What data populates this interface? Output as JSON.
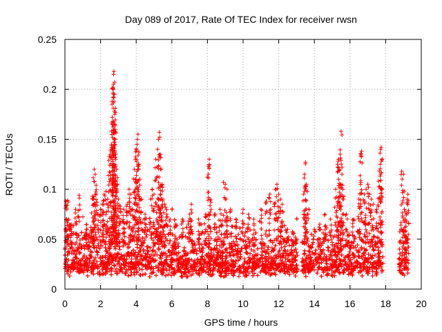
{
  "chart_data": {
    "type": "scatter",
    "title": "Day 089 of 2017, Rate Of TEC Index for receiver rwsn",
    "xlabel": "GPS time / hours",
    "ylabel": "ROTI / TECUs",
    "xlim": [
      0,
      20
    ],
    "ylim": [
      0,
      0.25
    ],
    "xticks": [
      "0",
      "2",
      "4",
      "6",
      "8",
      "10",
      "12",
      "14",
      "16",
      "18",
      "20"
    ],
    "yticks": [
      "0",
      "0.05",
      "0.1",
      "0.15",
      "0.2",
      "0.25"
    ],
    "grid": true,
    "marker": "plus",
    "color": "#ff0000",
    "gaps": [
      [
        13.05,
        13.3
      ],
      [
        17.85,
        18.75
      ],
      [
        19.3,
        20
      ]
    ],
    "density_profile": [
      [
        0.0,
        0.033
      ],
      [
        0.5,
        0.03
      ],
      [
        1.0,
        0.03
      ],
      [
        1.5,
        0.03
      ],
      [
        2.0,
        0.032
      ],
      [
        2.5,
        0.034
      ],
      [
        3.0,
        0.033
      ],
      [
        3.5,
        0.032
      ],
      [
        4.0,
        0.033
      ],
      [
        4.5,
        0.032
      ],
      [
        5.0,
        0.033
      ],
      [
        5.5,
        0.032
      ],
      [
        6.0,
        0.03
      ],
      [
        6.5,
        0.03
      ],
      [
        7.0,
        0.03
      ],
      [
        7.5,
        0.03
      ],
      [
        8.0,
        0.032
      ],
      [
        8.5,
        0.03
      ],
      [
        9.0,
        0.03
      ],
      [
        9.5,
        0.03
      ],
      [
        10.0,
        0.03
      ],
      [
        10.5,
        0.03
      ],
      [
        11.0,
        0.03
      ],
      [
        11.5,
        0.03
      ],
      [
        12.0,
        0.032
      ],
      [
        12.5,
        0.03
      ],
      [
        13.0,
        0.03
      ],
      [
        13.5,
        0.032
      ],
      [
        14.0,
        0.03
      ],
      [
        14.5,
        0.03
      ],
      [
        15.0,
        0.03
      ],
      [
        15.5,
        0.032
      ],
      [
        16.0,
        0.03
      ],
      [
        16.5,
        0.032
      ],
      [
        17.0,
        0.034
      ],
      [
        17.5,
        0.032
      ],
      [
        18.8,
        0.03
      ],
      [
        19.2,
        0.03
      ]
    ],
    "series": [
      {
        "values": [
          [
            0.05,
            0.088
          ],
          [
            0.15,
            0.089
          ],
          [
            0.1,
            0.081
          ],
          [
            0.2,
            0.07
          ],
          [
            0.35,
            0.065
          ],
          [
            0.6,
            0.08
          ],
          [
            0.8,
            0.094
          ],
          [
            1.2,
            0.06
          ],
          [
            1.35,
            0.055
          ],
          [
            1.55,
            0.093
          ],
          [
            1.6,
            0.09
          ],
          [
            1.65,
            0.12
          ],
          [
            1.7,
            0.115
          ],
          [
            1.75,
            0.104
          ],
          [
            1.85,
            0.075
          ],
          [
            2.0,
            0.08
          ],
          [
            2.1,
            0.085
          ],
          [
            2.2,
            0.095
          ],
          [
            2.3,
            0.098
          ],
          [
            2.4,
            0.09
          ],
          [
            2.5,
            0.133
          ],
          [
            2.55,
            0.135
          ],
          [
            2.6,
            0.14
          ],
          [
            2.62,
            0.145
          ],
          [
            2.65,
            0.165
          ],
          [
            2.68,
            0.168
          ],
          [
            2.7,
            0.2
          ],
          [
            2.72,
            0.205
          ],
          [
            2.73,
            0.215
          ],
          [
            2.75,
            0.218
          ],
          [
            2.77,
            0.195
          ],
          [
            2.78,
            0.178
          ],
          [
            2.8,
            0.175
          ],
          [
            2.82,
            0.15
          ],
          [
            2.85,
            0.135
          ],
          [
            2.9,
            0.12
          ],
          [
            2.95,
            0.105
          ],
          [
            3.0,
            0.09
          ],
          [
            3.1,
            0.083
          ],
          [
            3.3,
            0.08
          ],
          [
            3.5,
            0.085
          ],
          [
            3.6,
            0.1
          ],
          [
            3.7,
            0.095
          ],
          [
            3.8,
            0.08
          ],
          [
            3.9,
            0.12
          ],
          [
            3.95,
            0.13
          ],
          [
            4.0,
            0.14
          ],
          [
            4.05,
            0.145
          ],
          [
            4.1,
            0.155
          ],
          [
            4.15,
            0.125
          ],
          [
            4.2,
            0.11
          ],
          [
            4.3,
            0.09
          ],
          [
            4.5,
            0.075
          ],
          [
            4.8,
            0.09
          ],
          [
            4.9,
            0.1
          ],
          [
            5.0,
            0.095
          ],
          [
            5.1,
            0.13
          ],
          [
            5.2,
            0.14
          ],
          [
            5.25,
            0.15
          ],
          [
            5.3,
            0.157
          ],
          [
            5.35,
            0.135
          ],
          [
            5.4,
            0.12
          ],
          [
            5.45,
            0.105
          ],
          [
            5.5,
            0.09
          ],
          [
            5.6,
            0.085
          ],
          [
            5.7,
            0.075
          ],
          [
            5.9,
            0.07
          ],
          [
            6.2,
            0.065
          ],
          [
            6.6,
            0.07
          ],
          [
            7.0,
            0.075
          ],
          [
            7.1,
            0.085
          ],
          [
            7.5,
            0.07
          ],
          [
            7.9,
            0.075
          ],
          [
            8.1,
            0.13
          ],
          [
            8.05,
            0.115
          ],
          [
            8.15,
            0.09
          ],
          [
            8.4,
            0.075
          ],
          [
            8.7,
            0.08
          ],
          [
            8.9,
            0.107
          ],
          [
            9.0,
            0.105
          ],
          [
            9.1,
            0.1
          ],
          [
            9.3,
            0.08
          ],
          [
            9.6,
            0.07
          ],
          [
            10.0,
            0.08
          ],
          [
            10.3,
            0.075
          ],
          [
            10.6,
            0.07
          ],
          [
            11.0,
            0.08
          ],
          [
            11.3,
            0.088
          ],
          [
            11.5,
            0.095
          ],
          [
            11.8,
            0.1
          ],
          [
            11.9,
            0.105
          ],
          [
            12.0,
            0.095
          ],
          [
            12.1,
            0.09
          ],
          [
            12.2,
            0.085
          ],
          [
            12.5,
            0.06
          ],
          [
            12.8,
            0.055
          ],
          [
            13.0,
            0.05
          ],
          [
            13.4,
            0.095
          ],
          [
            13.45,
            0.115
          ],
          [
            13.5,
            0.127
          ],
          [
            13.55,
            0.105
          ],
          [
            13.6,
            0.075
          ],
          [
            14.0,
            0.06
          ],
          [
            14.3,
            0.065
          ],
          [
            14.6,
            0.075
          ],
          [
            14.9,
            0.07
          ],
          [
            15.2,
            0.1
          ],
          [
            15.3,
            0.125
          ],
          [
            15.35,
            0.13
          ],
          [
            15.4,
            0.12
          ],
          [
            15.45,
            0.135
          ],
          [
            15.5,
            0.158
          ],
          [
            15.55,
            0.115
          ],
          [
            15.6,
            0.1
          ],
          [
            15.8,
            0.075
          ],
          [
            16.2,
            0.07
          ],
          [
            16.5,
            0.09
          ],
          [
            16.6,
            0.135
          ],
          [
            16.65,
            0.138
          ],
          [
            16.8,
            0.095
          ],
          [
            16.9,
            0.1
          ],
          [
            17.0,
            0.105
          ],
          [
            17.1,
            0.095
          ],
          [
            17.2,
            0.09
          ],
          [
            17.3,
            0.085
          ],
          [
            17.5,
            0.08
          ],
          [
            17.6,
            0.108
          ],
          [
            17.7,
            0.125
          ],
          [
            17.72,
            0.14
          ],
          [
            17.75,
            0.142
          ],
          [
            17.8,
            0.1
          ],
          [
            18.9,
            0.118
          ],
          [
            19.0,
            0.115
          ],
          [
            19.05,
            0.08
          ],
          [
            19.1,
            0.07
          ],
          [
            19.2,
            0.09
          ],
          [
            19.25,
            0.095
          ]
        ]
      }
    ]
  }
}
